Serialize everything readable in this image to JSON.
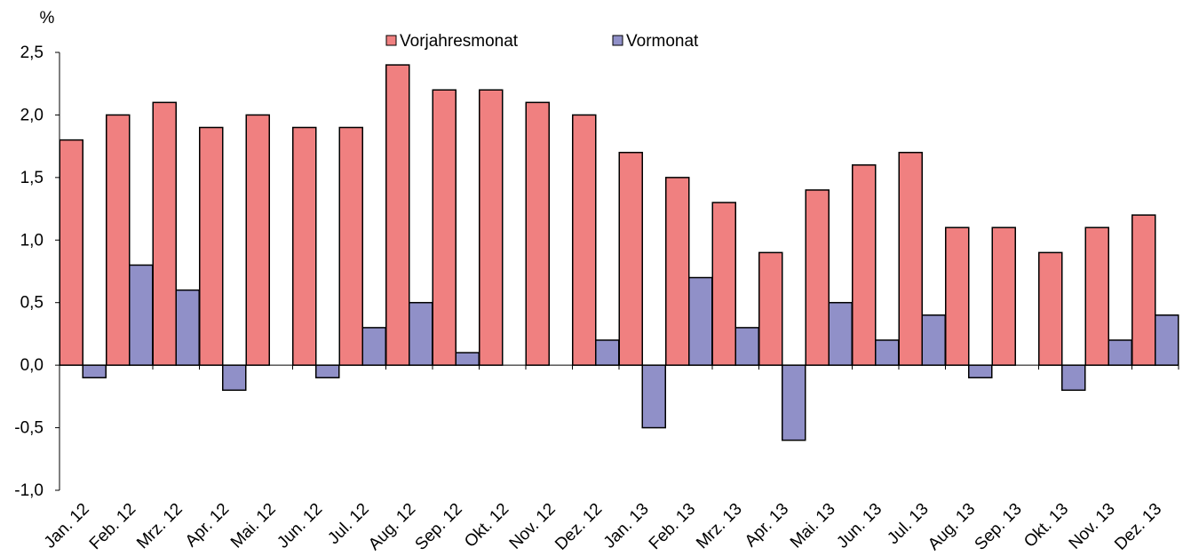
{
  "chart_data": {
    "type": "bar",
    "yunit": "%",
    "categories": [
      "Jan. 12",
      "Feb. 12",
      "Mrz. 12",
      "Apr. 12",
      "Mai. 12",
      "Jun. 12",
      "Jul. 12",
      "Aug. 12",
      "Sep. 12",
      "Okt. 12",
      "Nov. 12",
      "Dez. 12",
      "Jan. 13",
      "Feb. 13",
      "Mrz. 13",
      "Apr. 13",
      "Mai. 13",
      "Jun. 13",
      "Jul. 13",
      "Aug. 13",
      "Sep. 13",
      "Okt. 13",
      "Nov. 13",
      "Dez. 13"
    ],
    "series": [
      {
        "name": "Vorjahresmonat",
        "color": "#F08080",
        "values": [
          1.8,
          2.0,
          2.1,
          1.9,
          2.0,
          1.9,
          1.9,
          2.4,
          2.2,
          2.2,
          2.1,
          2.0,
          1.7,
          1.5,
          1.3,
          0.9,
          1.4,
          1.6,
          1.7,
          1.1,
          1.1,
          0.9,
          1.1,
          1.2
        ]
      },
      {
        "name": "Vormonat",
        "color": "#9090C8",
        "values": [
          -0.1,
          0.8,
          0.6,
          -0.2,
          0.0,
          -0.1,
          0.3,
          0.5,
          0.1,
          0.0,
          0.0,
          0.2,
          -0.5,
          0.7,
          0.3,
          -0.6,
          0.5,
          0.2,
          0.4,
          -0.1,
          0.0,
          -0.2,
          0.2,
          0.4
        ]
      }
    ],
    "ylim": [
      -1.0,
      2.5
    ],
    "yticks": [
      -1.0,
      -0.5,
      0.0,
      0.5,
      1.0,
      1.5,
      2.0,
      2.5
    ],
    "ytick_labels": [
      "-1,0",
      "-0,5",
      "0,0",
      "0,5",
      "1,0",
      "1,5",
      "2,0",
      "2,5"
    ],
    "legend_position": "top-center",
    "grid": false
  }
}
